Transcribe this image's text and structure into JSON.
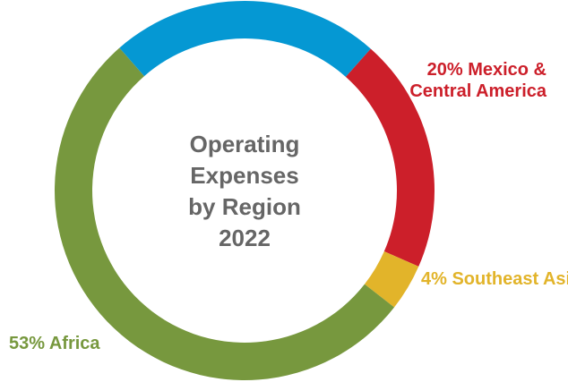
{
  "chart_data": {
    "type": "donut",
    "title": [
      "Operating",
      "Expenses",
      "by Region",
      "2022"
    ],
    "categories": [
      "Mexico & Central America",
      "Southeast Asia",
      "Africa",
      null
    ],
    "values": [
      20,
      4,
      53,
      23
    ],
    "value_labels": [
      "20%",
      "4%",
      "53%",
      null
    ],
    "colors": [
      "#cc1f2a",
      "#e2b42a",
      "#77983e",
      "#0598d3"
    ]
  }
}
